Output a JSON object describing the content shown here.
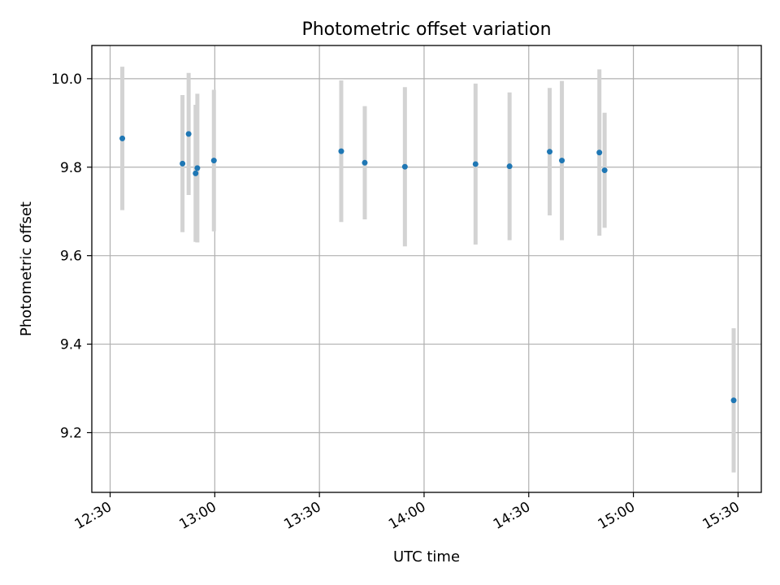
{
  "chart_data": {
    "type": "scatter",
    "title": "Photometric offset variation",
    "xlabel": "UTC time",
    "ylabel": "Photometric offset",
    "grid": true,
    "x_axis": {
      "kind": "time",
      "range": [
        "12:24:45",
        "15:36:40"
      ],
      "tick_labels": [
        "12:30",
        "13:00",
        "13:30",
        "14:00",
        "14:30",
        "15:00",
        "15:30"
      ]
    },
    "y_axis": {
      "range": [
        9.065,
        10.075
      ],
      "tick_labels": [
        "9.2",
        "9.4",
        "9.6",
        "9.8",
        "10.0"
      ],
      "tick_values": [
        9.2,
        9.4,
        9.6,
        9.8,
        10.0
      ]
    },
    "colors": {
      "points": "#1f77b4",
      "errorbars": "#d3d3d3"
    },
    "series": [
      {
        "points": [
          {
            "x": "12:33:30",
            "y": 9.865,
            "err": 0.162
          },
          {
            "x": "12:50:45",
            "y": 9.808,
            "err": 0.155
          },
          {
            "x": "12:52:30",
            "y": 9.875,
            "err": 0.138
          },
          {
            "x": "12:54:30",
            "y": 9.786,
            "err": 0.155
          },
          {
            "x": "12:55:00",
            "y": 9.798,
            "err": 0.168
          },
          {
            "x": "12:59:45",
            "y": 9.815,
            "err": 0.16
          },
          {
            "x": "13:36:15",
            "y": 9.836,
            "err": 0.16
          },
          {
            "x": "13:43:00",
            "y": 9.81,
            "err": 0.128
          },
          {
            "x": "13:54:30",
            "y": 9.801,
            "err": 0.18
          },
          {
            "x": "14:14:45",
            "y": 9.807,
            "err": 0.182
          },
          {
            "x": "14:24:30",
            "y": 9.802,
            "err": 0.167
          },
          {
            "x": "14:36:00",
            "y": 9.835,
            "err": 0.144
          },
          {
            "x": "14:39:30",
            "y": 9.815,
            "err": 0.18
          },
          {
            "x": "14:50:15",
            "y": 9.833,
            "err": 0.188
          },
          {
            "x": "14:51:45",
            "y": 9.793,
            "err": 0.13
          },
          {
            "x": "15:28:45",
            "y": 9.273,
            "err": 0.163
          }
        ]
      }
    ]
  }
}
